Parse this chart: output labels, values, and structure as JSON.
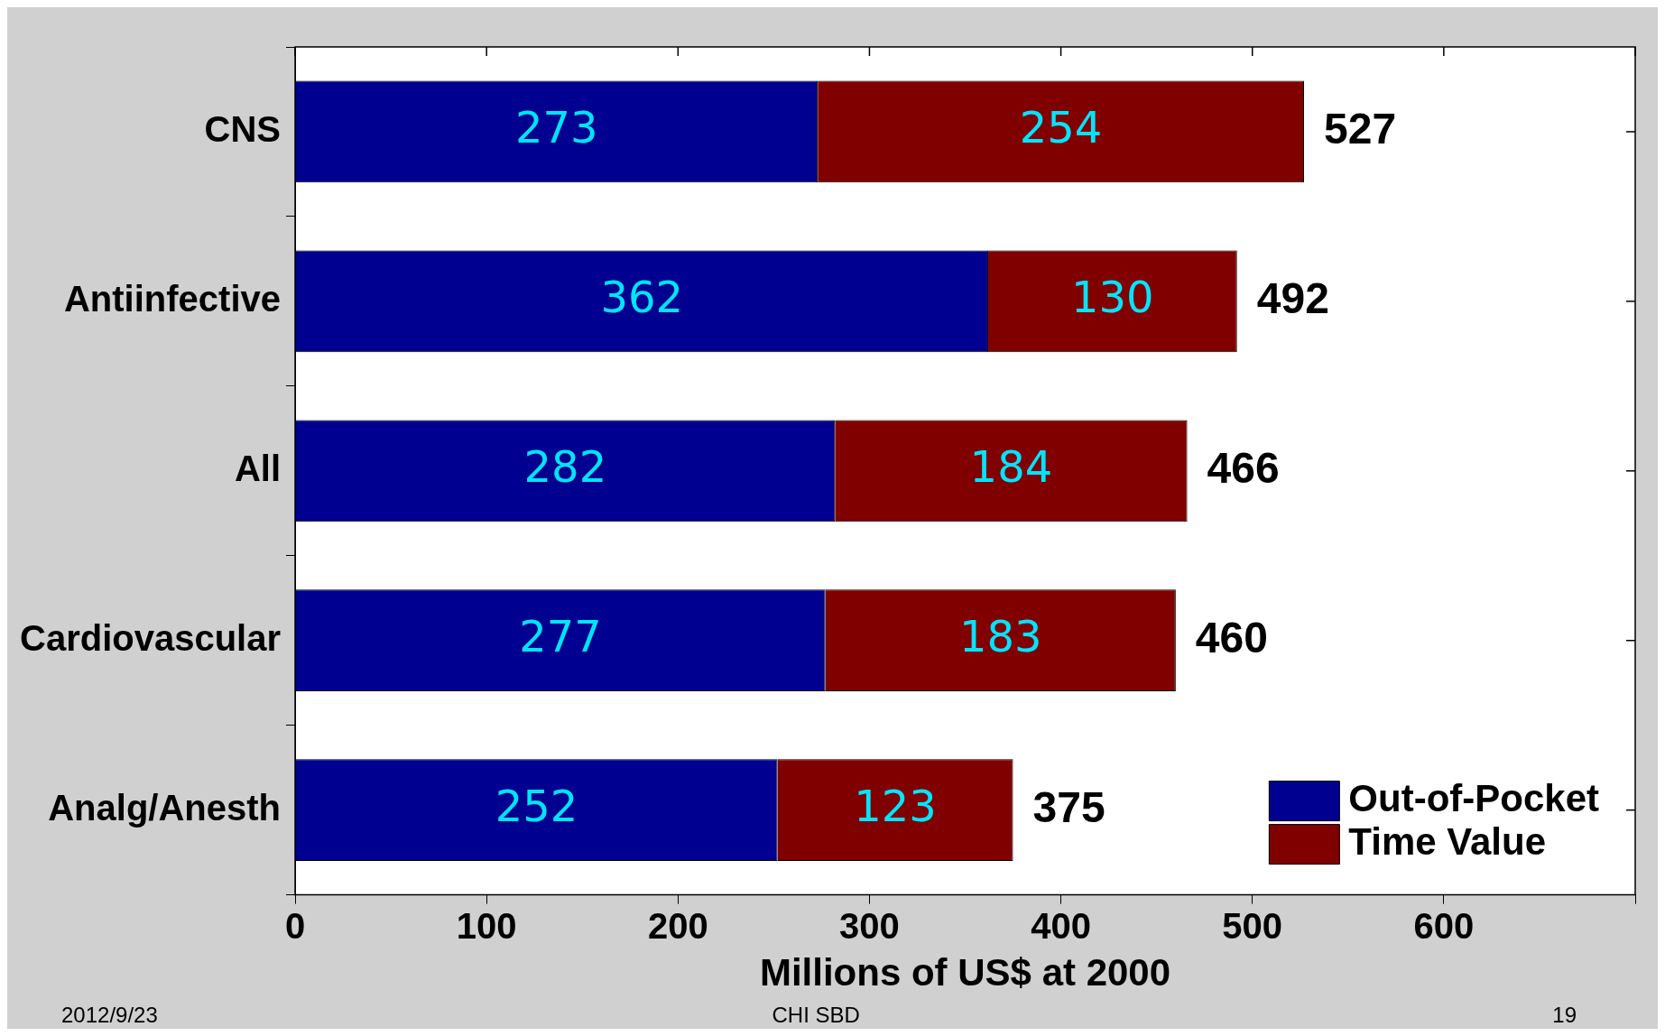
{
  "chart_data": {
    "type": "bar",
    "orientation": "horizontal",
    "stacked": true,
    "xlabel": "Millions of US$ at 2000",
    "categories": [
      "CNS",
      "Antiinfective",
      "All",
      "Cardiovascular",
      "Analg/Anesth"
    ],
    "series": [
      {
        "name": "Out-of-Pocket",
        "color": "#000090",
        "values": [
          273,
          362,
          282,
          277,
          252
        ]
      },
      {
        "name": "Time Value",
        "color": "#800000",
        "values": [
          254,
          130,
          184,
          183,
          123
        ]
      }
    ],
    "totals": [
      "527",
      "492",
      "466",
      "460",
      "375"
    ],
    "data_labels": true,
    "xlim": [
      0,
      700
    ],
    "xticks": [
      0,
      100,
      200,
      300,
      400,
      500,
      600,
      {
        "value": 700,
        "label": null
      }
    ],
    "grid": false,
    "legend": "bottom right",
    "annotations": [
      "2012/9/23",
      "CHI SBD",
      "19"
    ]
  }
}
